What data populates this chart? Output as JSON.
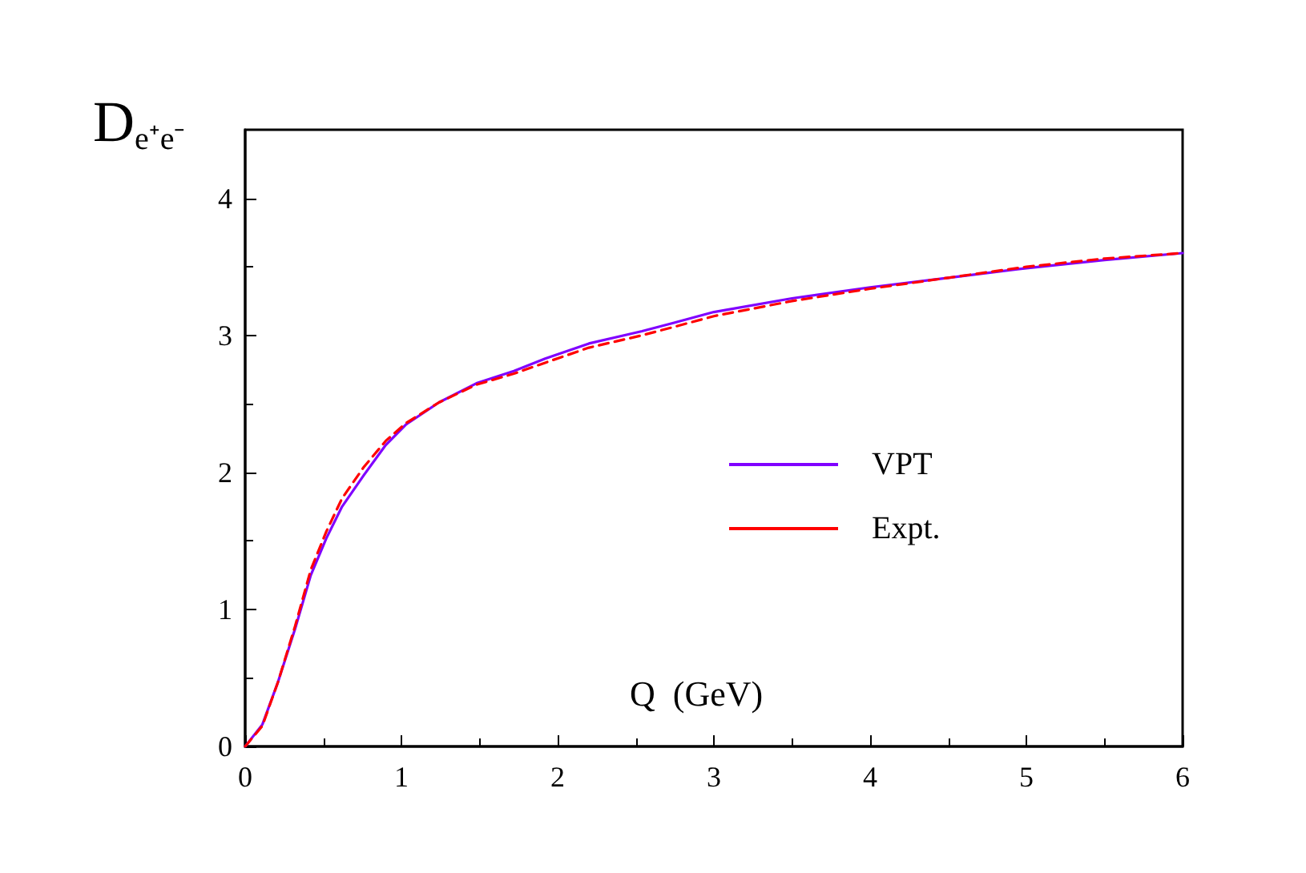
{
  "chart_data": {
    "type": "line",
    "ylabel": "D$_{e⁺e⁻}$",
    "xlabel": "Q  (GeV)",
    "xlim": [
      0,
      6
    ],
    "xticks": [
      0,
      1,
      2,
      3,
      4,
      5,
      6
    ],
    "ylim": [
      0,
      4.5
    ],
    "yticks": [
      0,
      1,
      2,
      3,
      4
    ],
    "grid": false,
    "legend": "right",
    "marker": "none",
    "series": [
      {
        "name": "VPT",
        "color": "#8000ff",
        "line_style": "solid",
        "x": [
          0,
          0.11,
          0.21,
          0.32,
          0.42,
          0.52,
          0.62,
          0.76,
          0.9,
          1.03,
          1.24,
          1.48,
          1.72,
          1.92,
          2.2,
          2.54,
          2.74,
          3,
          3.5,
          4,
          4.5,
          5,
          5.5,
          6
        ],
        "values": [
          0,
          0.16,
          0.47,
          0.86,
          1.25,
          1.52,
          1.75,
          1.98,
          2.2,
          2.35,
          2.51,
          2.65,
          2.74,
          2.83,
          2.94,
          3.03,
          3.09,
          3.17,
          3.27,
          3.35,
          3.42,
          3.49,
          3.55,
          3.6
        ]
      },
      {
        "name": "Expt.",
        "color": "#ff0000",
        "line_style": "dashed",
        "x": [
          0,
          0.11,
          0.21,
          0.32,
          0.42,
          0.52,
          0.62,
          0.76,
          0.9,
          1.03,
          1.24,
          1.48,
          1.72,
          1.92,
          2.2,
          2.54,
          2.74,
          3,
          3.5,
          4,
          4.5,
          5,
          5.5,
          6
        ],
        "values": [
          0,
          0.15,
          0.47,
          0.88,
          1.29,
          1.57,
          1.81,
          2.04,
          2.23,
          2.36,
          2.51,
          2.64,
          2.72,
          2.8,
          2.91,
          3.0,
          3.06,
          3.14,
          3.25,
          3.34,
          3.42,
          3.5,
          3.56,
          3.6
        ]
      }
    ]
  }
}
